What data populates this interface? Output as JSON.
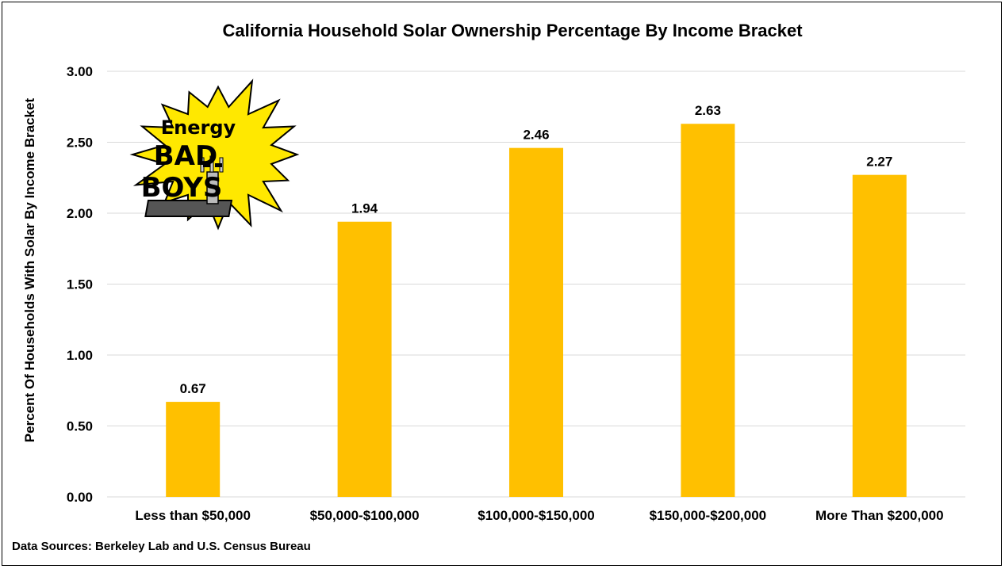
{
  "chart_data": {
    "type": "bar",
    "title": "California Household Solar Ownership Percentage By Income Bracket",
    "ylabel": "Percent Of Households With Solar By Income Bracket",
    "xlabel": "",
    "categories": [
      "Less than $50,000",
      "$50,000-$100,000",
      "$100,000-$150,000",
      "$150,000-$200,000",
      "More Than $200,000"
    ],
    "values": [
      0.67,
      1.94,
      2.46,
      2.63,
      2.27
    ],
    "data_labels": [
      "0.67",
      "1.94",
      "2.46",
      "2.63",
      "2.27"
    ],
    "ylim": [
      0,
      3
    ],
    "yticks": [
      "0.00",
      "0.50",
      "1.00",
      "1.50",
      "2.00",
      "2.50",
      "3.00"
    ],
    "grid": true,
    "bar_color": "#FFC000",
    "grid_color": "#D9D9D9"
  },
  "source_note": "Data Sources: Berkeley Lab and U.S. Census Bureau",
  "logo": {
    "line1": "Energy",
    "line2": "BAD",
    "line3": "BOYS",
    "burst_color": "#FFE800"
  }
}
